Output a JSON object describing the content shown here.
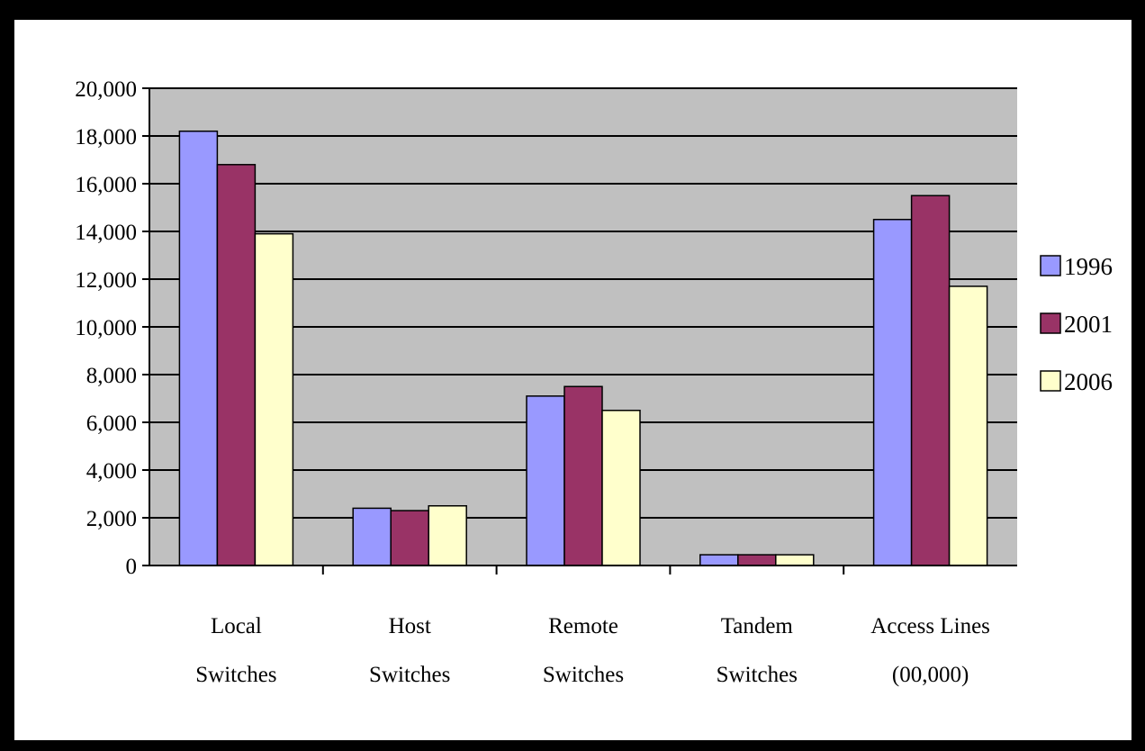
{
  "chart_data": {
    "type": "bar",
    "categories": [
      [
        "Local",
        "Switches"
      ],
      [
        "Host",
        "Switches"
      ],
      [
        "Remote",
        "Switches"
      ],
      [
        "Tandem",
        "Switches"
      ],
      [
        "Access Lines",
        "(00,000)"
      ]
    ],
    "series": [
      {
        "name": "1996",
        "color": "#9999ff",
        "values": [
          18200,
          2400,
          7100,
          450,
          14500
        ]
      },
      {
        "name": "2001",
        "color": "#993366",
        "values": [
          16800,
          2300,
          7500,
          450,
          15500
        ]
      },
      {
        "name": "2006",
        "color": "#ffffcc",
        "values": [
          13900,
          2500,
          6500,
          450,
          11700
        ]
      }
    ],
    "yticks": [
      "0",
      "2,000",
      "4,000",
      "6,000",
      "8,000",
      "10,000",
      "12,000",
      "14,000",
      "16,000",
      "18,000",
      "20,000"
    ],
    "ylim": [
      0,
      20000
    ],
    "plot_background": "#c0c0c0",
    "grid": true,
    "legend_position": "right"
  }
}
